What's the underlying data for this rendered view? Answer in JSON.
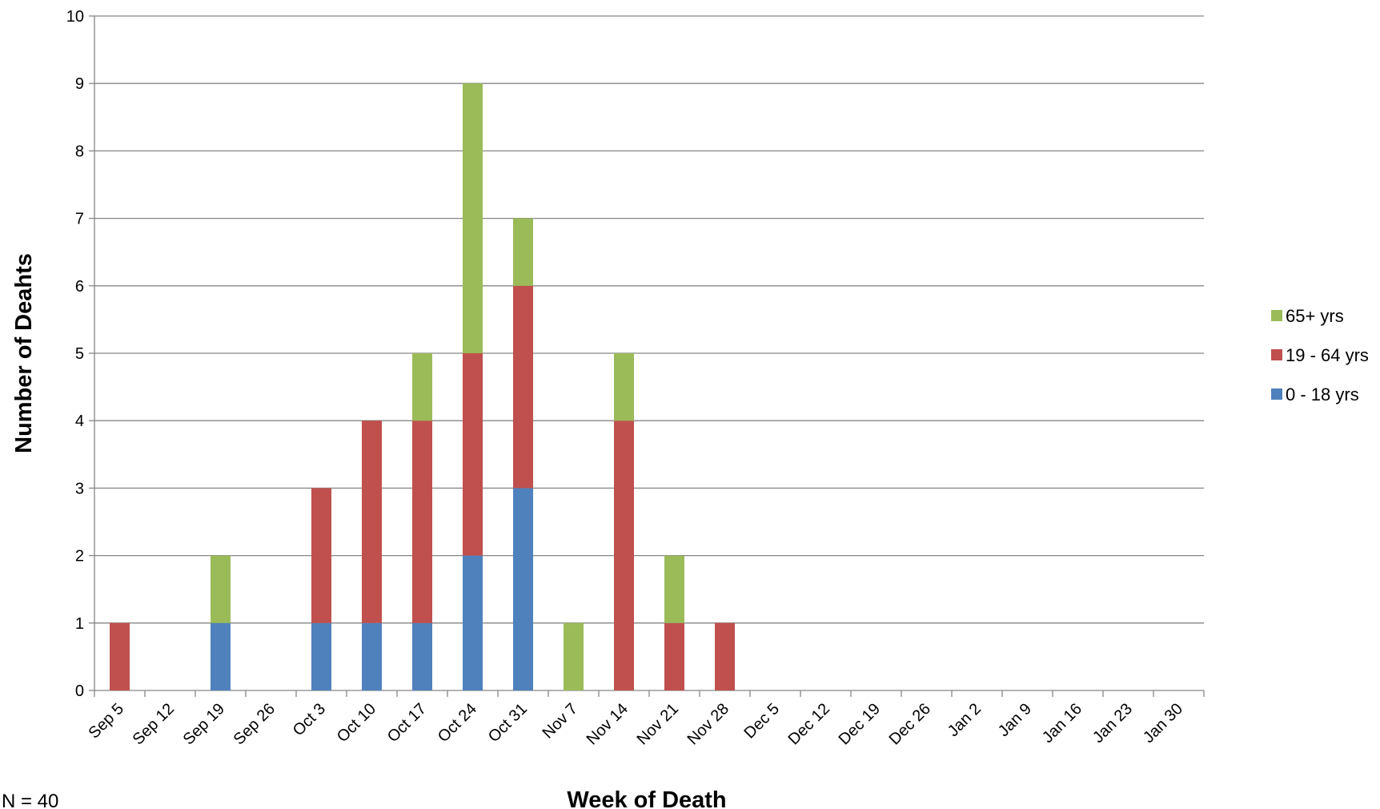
{
  "chart_data": {
    "type": "bar",
    "stacked": true,
    "xlabel": "Week of Death",
    "ylabel": "Number of Deahts",
    "ylim": [
      0,
      10
    ],
    "yticks": [
      0,
      1,
      2,
      3,
      4,
      5,
      6,
      7,
      8,
      9,
      10
    ],
    "grid": "horizontal",
    "legend_position": "right",
    "note": "N = 40",
    "categories": [
      "Sep 5",
      "Sep 12",
      "Sep 19",
      "Sep 26",
      "Oct 3",
      "Oct 10",
      "Oct 17",
      "Oct 24",
      "Oct 31",
      "Nov 7",
      "Nov 14",
      "Nov 21",
      "Nov 28",
      "Dec 5",
      "Dec 12",
      "Dec 19",
      "Dec 26",
      "Jan 2",
      "Jan 9",
      "Jan 16",
      "Jan 23",
      "Jan 30"
    ],
    "series": [
      {
        "name": "0 - 18 yrs",
        "color": "#4f81bd",
        "values": [
          0,
          0,
          1,
          0,
          1,
          1,
          1,
          2,
          3,
          0,
          0,
          0,
          0,
          0,
          0,
          0,
          0,
          0,
          0,
          0,
          0,
          0
        ]
      },
      {
        "name": "19 - 64 yrs",
        "color": "#c0504d",
        "values": [
          1,
          0,
          0,
          0,
          2,
          3,
          3,
          3,
          3,
          0,
          4,
          1,
          1,
          0,
          0,
          0,
          0,
          0,
          0,
          0,
          0,
          0
        ]
      },
      {
        "name": "65+ yrs",
        "color": "#9bbb59",
        "values": [
          0,
          0,
          1,
          0,
          0,
          0,
          1,
          4,
          1,
          1,
          1,
          1,
          0,
          0,
          0,
          0,
          0,
          0,
          0,
          0,
          0,
          0
        ]
      }
    ],
    "legend_order": [
      "65+ yrs",
      "19 - 64 yrs",
      "0 - 18 yrs"
    ]
  }
}
